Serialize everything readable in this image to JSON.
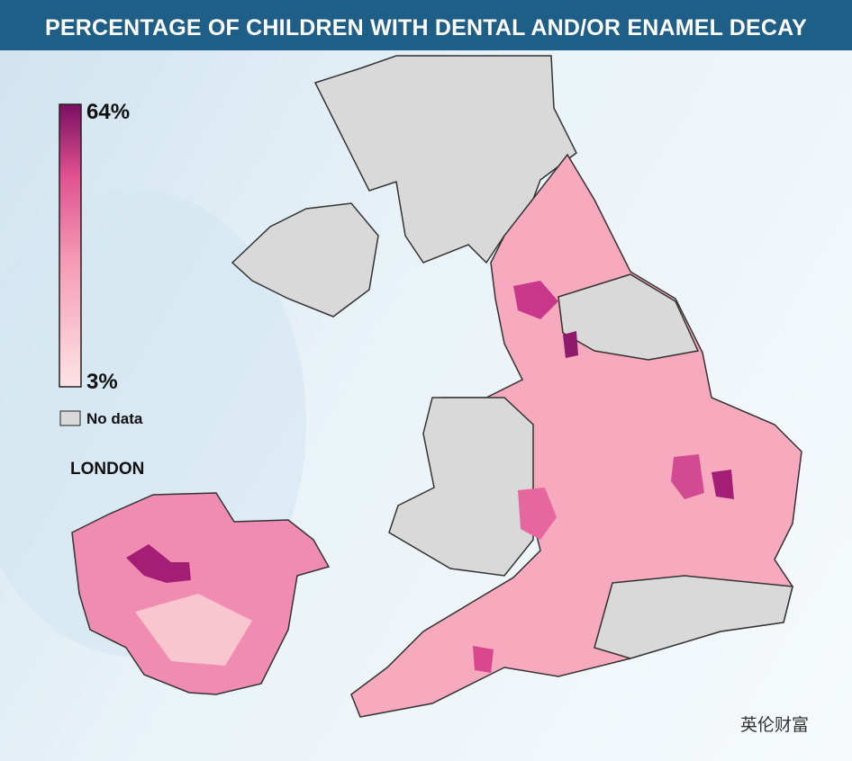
{
  "header": {
    "title": "PERCENTAGE OF CHILDREN WITH DENTAL AND/OR ENAMEL DECAY"
  },
  "legend": {
    "max_label": "64%",
    "min_label": "3%",
    "no_data": "No data"
  },
  "inset": {
    "title": "LONDON"
  },
  "watermark": {
    "text": "英伦财富"
  }
}
